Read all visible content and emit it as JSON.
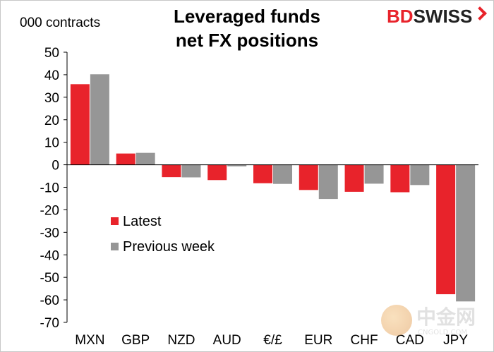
{
  "header": {
    "title_line1": "Leveraged funds",
    "title_line2": "net FX positions",
    "unit_label": "000 contracts",
    "brand_part1": "BD",
    "brand_part2": "SWISS"
  },
  "watermark": {
    "text": "中金网",
    "site": "CNGOLD.COM"
  },
  "chart_data": {
    "type": "bar",
    "categories": [
      "MXN",
      "GBP",
      "NZD",
      "AUD",
      "€/£",
      "EUR",
      "CHF",
      "CAD",
      "JPY"
    ],
    "series": [
      {
        "name": "Latest",
        "color": "#e8232b",
        "values": [
          35.8,
          5.0,
          -5.5,
          -6.8,
          -8.2,
          -11.2,
          -12.0,
          -12.2,
          -57.5
        ]
      },
      {
        "name": "Previous week",
        "color": "#969696",
        "values": [
          40.2,
          5.3,
          -5.6,
          -0.7,
          -8.5,
          -15.2,
          -8.4,
          -9.0,
          -60.7
        ]
      }
    ],
    "ylim": [
      -70,
      50
    ],
    "yticks": [
      50,
      40,
      30,
      20,
      10,
      0,
      -10,
      -20,
      -30,
      -40,
      -50,
      -60,
      -70
    ],
    "grid": false,
    "legend_position": "left"
  }
}
